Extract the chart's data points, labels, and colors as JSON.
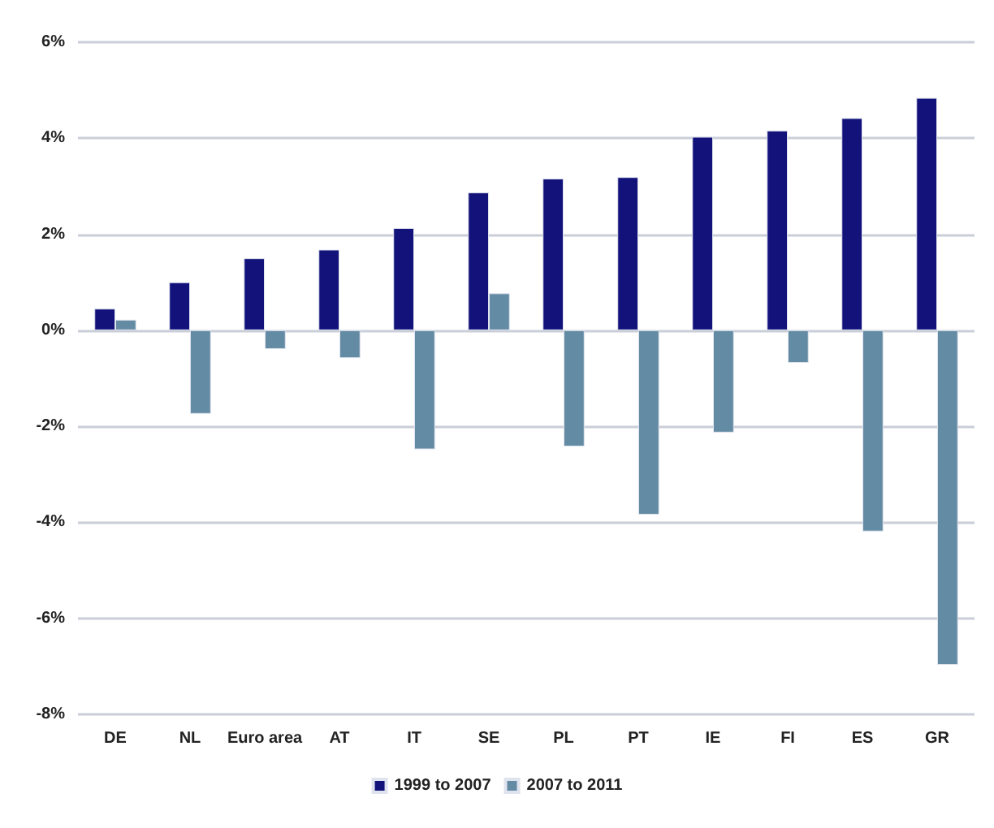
{
  "chart_data": {
    "type": "bar",
    "categories": [
      "DE",
      "NL",
      "Euro area",
      "AT",
      "IT",
      "SE",
      "PL",
      "PT",
      "IE",
      "FI",
      "ES",
      "GR"
    ],
    "series": [
      {
        "name": "1999 to 2007",
        "color": "#12127a",
        "values": [
          0.45,
          1.0,
          1.5,
          1.68,
          2.13,
          2.87,
          3.16,
          3.19,
          4.03,
          4.16,
          4.42,
          4.84
        ]
      },
      {
        "name": "2007 to 2011",
        "color": "#638ba3",
        "values": [
          0.22,
          -1.74,
          -0.39,
          -0.58,
          -2.48,
          0.77,
          -2.42,
          -3.84,
          -2.13,
          -0.68,
          -4.19,
          -6.97
        ]
      }
    ],
    "ylim": [
      -8,
      6
    ],
    "yticks": [
      {
        "value": -8,
        "label": "-8%"
      },
      {
        "value": -6,
        "label": "-6%"
      },
      {
        "value": -4,
        "label": "-4%"
      },
      {
        "value": -2,
        "label": "-2%"
      },
      {
        "value": 0,
        "label": "0%"
      },
      {
        "value": 2,
        "label": "2%"
      },
      {
        "value": 4,
        "label": "4%"
      },
      {
        "value": 6,
        "label": "6%"
      }
    ],
    "grid": "y",
    "legend": "bottom"
  }
}
